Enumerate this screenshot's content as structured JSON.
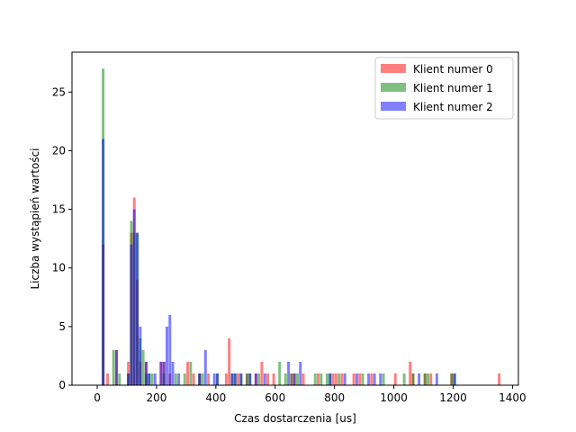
{
  "chart_data": {
    "type": "bar",
    "subtype": "overlaid-histogram",
    "xlabel": "Czas dostarczenia [us]",
    "ylabel": "Liczba wystąpień wartości",
    "xlim": [
      -85,
      1420
    ],
    "ylim": [
      0,
      28.4
    ],
    "xticks": [
      0,
      200,
      400,
      600,
      800,
      1000,
      1200,
      1400
    ],
    "yticks": [
      0,
      5,
      10,
      15,
      20,
      25
    ],
    "bin_width": 9,
    "legend_position": "top-right",
    "grid": false,
    "series": [
      {
        "name": "Klient numer 0",
        "color": "#ff0000",
        "opacity": 0.5,
        "bins": [
          [
            20,
            12
          ],
          [
            35,
            1
          ],
          [
            65,
            3
          ],
          [
            105,
            2
          ],
          [
            115,
            13
          ],
          [
            125,
            16
          ],
          [
            135,
            9
          ],
          [
            145,
            2
          ],
          [
            165,
            2
          ],
          [
            215,
            2
          ],
          [
            225,
            2
          ],
          [
            245,
            1
          ],
          [
            305,
            2
          ],
          [
            325,
            1
          ],
          [
            345,
            1
          ],
          [
            375,
            1
          ],
          [
            435,
            1
          ],
          [
            445,
            4
          ],
          [
            475,
            1
          ],
          [
            505,
            1
          ],
          [
            535,
            1
          ],
          [
            555,
            2
          ],
          [
            575,
            1
          ],
          [
            595,
            1
          ],
          [
            655,
            1
          ],
          [
            665,
            1
          ],
          [
            695,
            1
          ],
          [
            745,
            1
          ],
          [
            795,
            1
          ],
          [
            805,
            1
          ],
          [
            825,
            1
          ],
          [
            865,
            1
          ],
          [
            885,
            1
          ],
          [
            925,
            1
          ],
          [
            1005,
            1
          ],
          [
            1055,
            2
          ],
          [
            1065,
            1
          ],
          [
            1105,
            1
          ],
          [
            1125,
            1
          ],
          [
            1195,
            1
          ],
          [
            1355,
            1
          ]
        ]
      },
      {
        "name": "Klient numer 1",
        "color": "#008000",
        "opacity": 0.5,
        "bins": [
          [
            20,
            27
          ],
          [
            55,
            3
          ],
          [
            75,
            1
          ],
          [
            105,
            1
          ],
          [
            115,
            14
          ],
          [
            125,
            13
          ],
          [
            135,
            13
          ],
          [
            145,
            4
          ],
          [
            155,
            3
          ],
          [
            165,
            1
          ],
          [
            175,
            1
          ],
          [
            185,
            1
          ],
          [
            225,
            1
          ],
          [
            265,
            1
          ],
          [
            295,
            1
          ],
          [
            315,
            2
          ],
          [
            345,
            1
          ],
          [
            355,
            1
          ],
          [
            405,
            1
          ],
          [
            455,
            1
          ],
          [
            465,
            1
          ],
          [
            485,
            1
          ],
          [
            505,
            1
          ],
          [
            515,
            1
          ],
          [
            545,
            1
          ],
          [
            615,
            2
          ],
          [
            635,
            1
          ],
          [
            655,
            1
          ],
          [
            675,
            1
          ],
          [
            735,
            1
          ],
          [
            755,
            1
          ],
          [
            775,
            1
          ],
          [
            785,
            1
          ],
          [
            815,
            1
          ],
          [
            895,
            1
          ],
          [
            965,
            1
          ],
          [
            1035,
            1
          ],
          [
            1065,
            1
          ],
          [
            1105,
            1
          ],
          [
            1115,
            1
          ],
          [
            1195,
            1
          ],
          [
            1205,
            1
          ]
        ]
      },
      {
        "name": "Klient numer 2",
        "color": "#0000ff",
        "opacity": 0.5,
        "bins": [
          [
            20,
            21
          ],
          [
            65,
            3
          ],
          [
            105,
            1
          ],
          [
            115,
            12
          ],
          [
            125,
            15
          ],
          [
            135,
            13
          ],
          [
            145,
            5
          ],
          [
            165,
            2
          ],
          [
            175,
            1
          ],
          [
            195,
            1
          ],
          [
            215,
            2
          ],
          [
            225,
            2
          ],
          [
            235,
            5
          ],
          [
            245,
            6
          ],
          [
            255,
            2
          ],
          [
            275,
            1
          ],
          [
            345,
            1
          ],
          [
            365,
            3
          ],
          [
            395,
            1
          ],
          [
            405,
            1
          ],
          [
            455,
            1
          ],
          [
            465,
            1
          ],
          [
            485,
            1
          ],
          [
            515,
            1
          ],
          [
            535,
            1
          ],
          [
            565,
            1
          ],
          [
            645,
            2
          ],
          [
            665,
            1
          ],
          [
            685,
            2
          ],
          [
            785,
            1
          ],
          [
            835,
            1
          ],
          [
            875,
            1
          ],
          [
            915,
            1
          ],
          [
            935,
            1
          ],
          [
            955,
            1
          ],
          [
            1085,
            1
          ],
          [
            1145,
            1
          ],
          [
            1205,
            1
          ]
        ]
      }
    ]
  }
}
